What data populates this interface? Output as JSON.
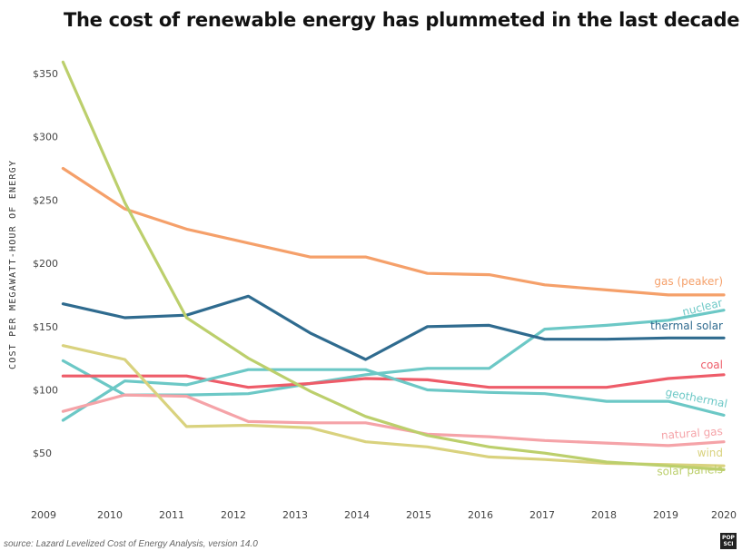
{
  "chart_data": {
    "type": "line",
    "title": "The cost of renewable energy has plummeted in the last decade",
    "ylabel": "COST PER MEGAWATT-HOUR OF ENERGY",
    "xlabel": "",
    "source": "source: Lazard Levelized Cost of Energy Analysis, version 14.0",
    "logo": "POP SCI",
    "x": [
      2009,
      2010,
      2011,
      2012,
      2013,
      2014,
      2015,
      2016,
      2017,
      2018,
      2019,
      2020
    ],
    "xlim": [
      2009,
      2020
    ],
    "ylim": [
      10,
      365
    ],
    "yticks": [
      50,
      100,
      150,
      200,
      250,
      300,
      350
    ],
    "ytick_labels": [
      "$50",
      "$100",
      "$150",
      "$200",
      "$250",
      "$300",
      "$350"
    ],
    "grid": false,
    "series": [
      {
        "name": "gas (peaker)",
        "color": "#f5a06a",
        "x": [
          2009.3,
          2010.3,
          2011.3,
          2012.3,
          2013.3,
          2014.2,
          2015.2,
          2016.2,
          2017.1,
          2018.1,
          2019.1,
          2020
        ],
        "values": [
          275,
          243,
          227,
          216,
          205,
          205,
          192,
          191,
          183,
          179,
          175,
          175
        ]
      },
      {
        "name": "nuclear",
        "color": "#6cc8c6",
        "x": [
          2009.3,
          2010.3,
          2011.3,
          2012.3,
          2013.3,
          2014.2,
          2015.2,
          2016.2,
          2017.1,
          2018.1,
          2019.1,
          2020
        ],
        "values": [
          123,
          96,
          96,
          97,
          105,
          112,
          117,
          117,
          148,
          151,
          155,
          163
        ]
      },
      {
        "name": "thermal solar",
        "color": "#2f6b8f",
        "x": [
          2009.3,
          2010.3,
          2011.3,
          2012.3,
          2013.3,
          2014.2,
          2015.2,
          2016.2,
          2017.1,
          2018.1,
          2019.1,
          2020
        ],
        "values": [
          168,
          157,
          159,
          174,
          145,
          124,
          150,
          151,
          140,
          140,
          141,
          141
        ]
      },
      {
        "name": "coal",
        "color": "#ee5c69",
        "x": [
          2009.3,
          2010.3,
          2011.3,
          2012.3,
          2013.3,
          2014.2,
          2015.2,
          2016.2,
          2017.1,
          2018.1,
          2019.1,
          2020
        ],
        "values": [
          111,
          111,
          111,
          102,
          105,
          109,
          108,
          102,
          102,
          102,
          109,
          112
        ]
      },
      {
        "name": "geothermal",
        "color": "#6cc8c6",
        "x": [
          2009.3,
          2010.3,
          2011.3,
          2012.3,
          2013.3,
          2014.2,
          2015.2,
          2016.2,
          2017.1,
          2018.1,
          2019.1,
          2020
        ],
        "values": [
          76,
          107,
          104,
          116,
          116,
          116,
          100,
          98,
          97,
          91,
          91,
          80
        ]
      },
      {
        "name": "natural gas",
        "color": "#f5a3a8",
        "x": [
          2009.3,
          2010.3,
          2011.3,
          2012.3,
          2013.3,
          2014.2,
          2015.2,
          2016.2,
          2017.1,
          2018.1,
          2019.1,
          2020
        ],
        "values": [
          83,
          96,
          95,
          75,
          74,
          74,
          65,
          63,
          60,
          58,
          56,
          59
        ]
      },
      {
        "name": "wind",
        "color": "#d9d27e",
        "x": [
          2009.3,
          2010.3,
          2011.3,
          2012.3,
          2013.3,
          2014.2,
          2015.2,
          2016.2,
          2017.1,
          2018.1,
          2019.1,
          2020
        ],
        "values": [
          135,
          124,
          71,
          72,
          70,
          59,
          55,
          47,
          45,
          42,
          41,
          40
        ]
      },
      {
        "name": "solar panels",
        "color": "#bccf6c",
        "x": [
          2009.3,
          2010.3,
          2011.3,
          2012.3,
          2013.3,
          2014.2,
          2015.2,
          2016.2,
          2017.1,
          2018.1,
          2019.1,
          2020
        ],
        "values": [
          359,
          248,
          157,
          125,
          99,
          79,
          64,
          55,
          50,
          43,
          40,
          37
        ]
      }
    ]
  }
}
